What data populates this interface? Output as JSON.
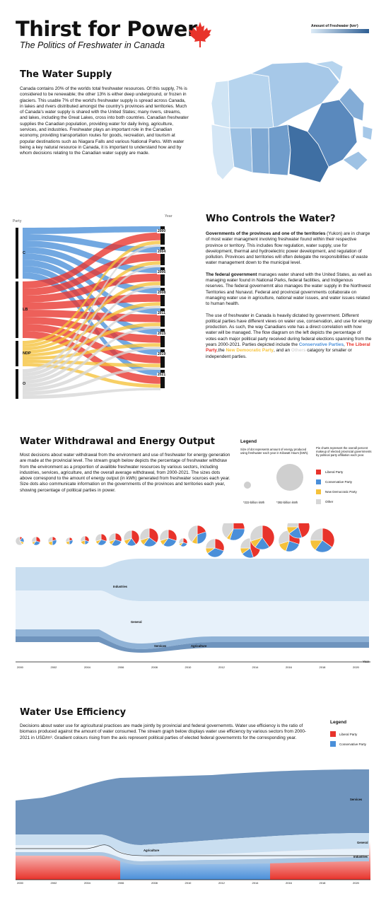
{
  "header": {
    "title": "Thirst for Power",
    "subtitle": "The Politics of Freshwater in Canada",
    "map_legend": "Amount of Freshwater (km²)"
  },
  "colors": {
    "liberal": "#e8332b",
    "conservative": "#4a8fd9",
    "ndp": "#f5c13a",
    "other": "#d6d6d6",
    "blue_dark": "#6f94bd",
    "blue_light": "#cde2f2",
    "maple": "#e8332b"
  },
  "water_supply": {
    "heading": "The Water Supply",
    "text": "Canada contains 20% of the worlds total freshwater resources. Of this supply, 7% is considered to be renewable; the other 13% is either deep underground, or frozen in glaciers. This usable 7% of the world's freshwater supply is spread across Canada, in lakes and rivers distributed amongst the country's provinces and territories. Much of Canada's water supply is shared with the United States; many rivers, streams, and lakes, including the Great Lakes, cross into both countries. Canadian freshwater supplies the Canadian population, providing water for daily living, agriculture, services, and industries. Freshwater plays an important role in the Canadian economy, providing transportation routes for goods, recreation, and tourism at popular destinations such as Niagara Falls and various National Parks. With water being a key natural resource in Canada, it is important to understand how  and by whom decisions relating to the Canadian water supply are made."
  },
  "control": {
    "heading": "Who Controls the Water?",
    "party_axis": "Party",
    "year_axis": "Year",
    "parties": [
      "C",
      "LB",
      "NDP",
      "O"
    ],
    "years": [
      "2000",
      "2004",
      "2006",
      "2008",
      "2011",
      "2015",
      "2019",
      "2021"
    ],
    "p1_bold": "Governments of the provinces and one of the territories",
    "p1": " (Yukon) are in charge of most water managment involving freshwater found within their respective province or territory. This includes flow regulation, water supply, use for development, thermal and hydroelectric power development, and regulation of pollution. Provinces and territories will often delegate the responsibilities of waste water management down to the municipal level.",
    "p2_bold": "The federal government",
    "p2": " manages water shared with the United States, as well as managing water found in National Parks, federal facilities, and Indigenous reserves. The federal governemnt also manages the water supply in the Northwest Territories and Nunavut. Federal and provincial governments collaborate on managing water use in agriculture, national water issues, and water issues related to human health.",
    "p3": "The use of freshwater in Canada is heavily dictated by government. Different political parties have different views on water use, conservation, and use for energy production. As such, the way Canadians vote has a direct correlation with how water will be managed. The flow diagram on the left depicts the percentage of votes each major political party received during federal elections spanning from the years 2000-2021. Parties depicted include the ",
    "p3_c": "Conservative Parties",
    "p3_sep1": ", ",
    "p3_l": "The Liberal Party",
    "p3_sep2": ",the ",
    "p3_n": "New Democratic Party",
    "p3_sep3": ", and an ",
    "p3_o": "Others",
    "p3_end": " catagory for smaller or independent parties."
  },
  "withdrawal": {
    "heading": "Water Withdrawal and Energy Output",
    "text": "Most decisions about water withdrawal from the environment and use of freshwater for energy generation are made at the provincial level. The stream graph below depicts the percentage of freshwater withdraw from the environment as a proportion of availible freshwater resources by various sectors, including industries, services, agriculture, and the overall average withdrawal, from 2000-2021. The sizes dots above correspond to the amount of energy output (in kWh) generated from freshwater sources each year. Size dots also communicate information on the governments of the provinces and territories each year, showing percentage of political parties in power.",
    "legend_title": "Legend",
    "legend_dot_text": "Size of dot represents amount of energy produced using freshwater each year in Kilowatt Hours (kWh).",
    "legend_small": "*222-billion kWh",
    "legend_large": "*392-billion kWh",
    "legend_pie_text": "Pie charts represent the overall percent makeup of elected provincial governments by political party affiliation each year.",
    "legend_items": [
      "Liberal Party",
      "Conservative Party",
      "New Democratic Party",
      "Other"
    ],
    "stream_labels": [
      "Industries",
      "General",
      "Services",
      "Agriculture"
    ],
    "x_ticks": [
      "2000",
      "2002",
      "2004",
      "2006",
      "2008",
      "2010",
      "2012",
      "2014",
      "2016",
      "2018",
      "2020"
    ],
    "x_label": "Year"
  },
  "efficiency": {
    "heading": "Water Use Efficiency",
    "text": "Decisions about water use for agricultural practices are made jointly by provincial and federal governemnts. Water use efficiency is the ratio of biomass produced against the amount of water consumed. The stream graph below displays water use efficiency by various sectors from 2000-2021 in USD/m³. Gradient colours rising from the axis represent political parties of elected federal governemnts for the corresponding year.",
    "legend_title": "Legend",
    "legend_items": [
      "Liberal Party",
      "Conservative Party"
    ],
    "stream_labels": [
      "Services",
      "General",
      "Agriculture",
      "Industries"
    ],
    "x_ticks": [
      "2000",
      "2002",
      "2004",
      "2006",
      "2008",
      "2010",
      "2012",
      "2014",
      "2016",
      "2018",
      "2020"
    ]
  }
}
